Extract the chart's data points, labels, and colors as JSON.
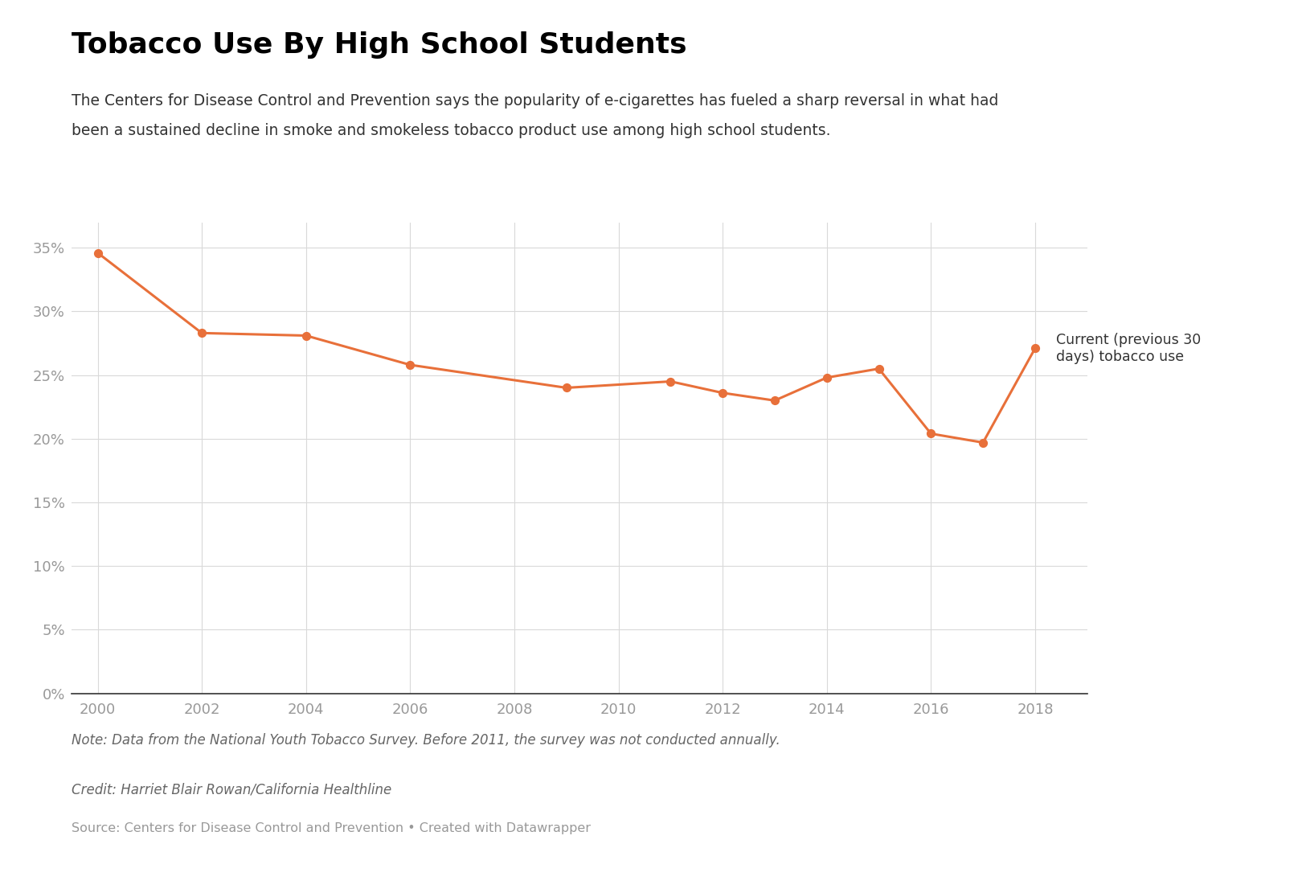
{
  "title": "Tobacco Use By High School Students",
  "subtitle_line1": "The Centers for Disease Control and Prevention says the popularity of e-cigarettes has fueled a sharp reversal in what had",
  "subtitle_line2": "been a sustained decline in smoke and smokeless tobacco product use among high school students.",
  "years": [
    2000,
    2002,
    2004,
    2006,
    2009,
    2011,
    2012,
    2013,
    2014,
    2015,
    2016,
    2017,
    2018
  ],
  "values": [
    0.346,
    0.283,
    0.281,
    0.258,
    0.24,
    0.245,
    0.236,
    0.23,
    0.248,
    0.255,
    0.204,
    0.197,
    0.271
  ],
  "line_color": "#E8703A",
  "marker_color": "#E8703A",
  "background_color": "#ffffff",
  "grid_color": "#d9d9d9",
  "tick_label_color": "#999999",
  "title_color": "#000000",
  "subtitle_color": "#333333",
  "note_text": "Note: Data from the National Youth Tobacco Survey. Before 2011, the survey was not conducted annually.",
  "credit_text": "Credit: Harriet Blair Rowan/California Healthline",
  "source_text": "Source: Centers for Disease Control and Prevention • Created with Datawrapper",
  "legend_label": "Current (previous 30\ndays) tobacco use",
  "ylim": [
    0,
    0.37
  ],
  "yticks": [
    0.0,
    0.05,
    0.1,
    0.15,
    0.2,
    0.25,
    0.3,
    0.35
  ],
  "xlim": [
    1999.5,
    2019.0
  ],
  "xticks": [
    2000,
    2002,
    2004,
    2006,
    2008,
    2010,
    2012,
    2014,
    2016,
    2018
  ]
}
